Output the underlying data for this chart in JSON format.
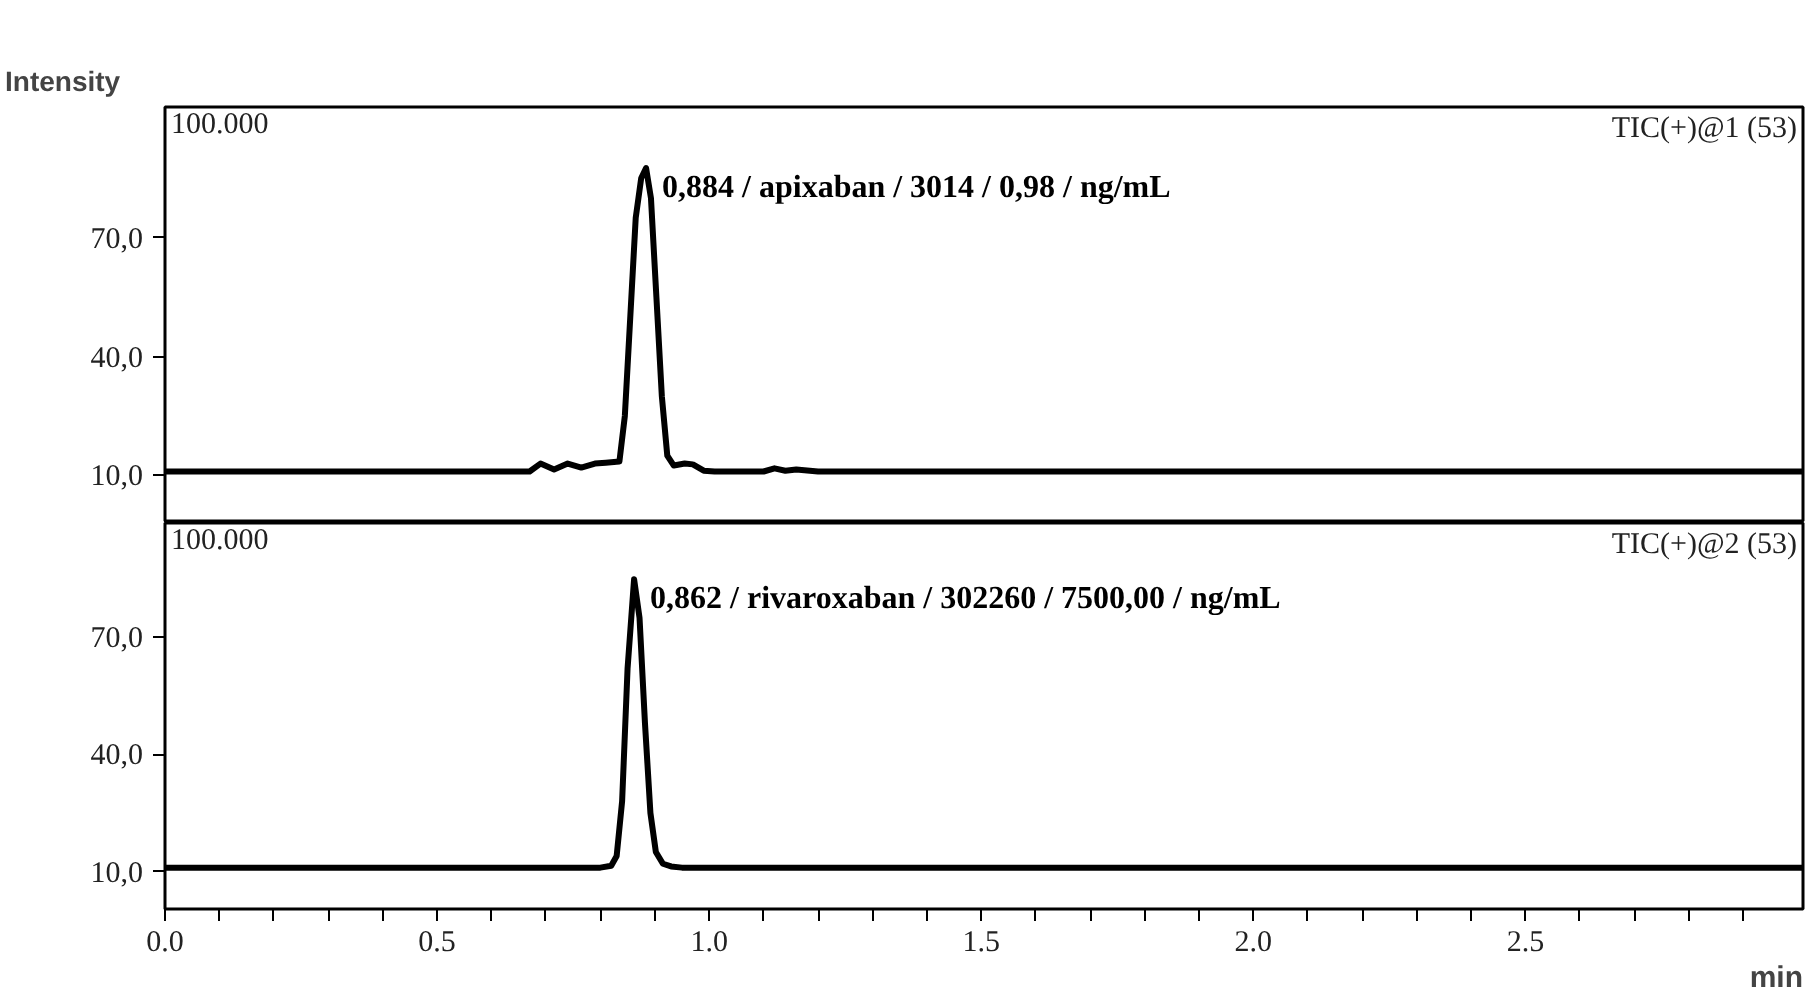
{
  "chart_data": [
    {
      "type": "line",
      "ylabel": "Intensity",
      "xlim": [
        0,
        3.01
      ],
      "ylim": [
        -2,
        103
      ],
      "yticks": [
        {
          "value": 10,
          "label": "10,0"
        },
        {
          "value": 40,
          "label": "40,0"
        },
        {
          "value": 70,
          "label": "70,0"
        }
      ],
      "tick_labels": "y",
      "grid": false,
      "series": [
        {
          "color": "#000000",
          "x": [
            0,
            0.5,
            0.67,
            0.69,
            0.715,
            0.74,
            0.765,
            0.79,
            0.81,
            0.835,
            0.845,
            0.855,
            0.865,
            0.875,
            0.884,
            0.893,
            0.903,
            0.913,
            0.923,
            0.935,
            0.955,
            0.97,
            0.99,
            1.01,
            1.1,
            1.12,
            1.14,
            1.16,
            1.2,
            1.5,
            2.0,
            2.5,
            3.01
          ],
          "values": [
            11,
            11,
            11,
            13,
            11.5,
            13,
            12,
            13,
            13.2,
            13.5,
            25,
            50,
            75,
            85,
            87.6,
            80,
            55,
            30,
            15,
            12.5,
            13,
            12.8,
            11.2,
            11,
            11,
            11.8,
            11.2,
            11.5,
            11,
            11,
            11,
            11,
            11
          ]
        }
      ],
      "annotations": [
        "100.000",
        "TIC(+)@1 (53)",
        {
          "text": "0,884 / apixaban / 3014 / 0,98 / ng/mL",
          "x": 0.884,
          "y": 87.6
        }
      ]
    },
    {
      "type": "line",
      "xlabel": "min",
      "xlim": [
        0,
        3.01
      ],
      "ylim": [
        0.4,
        99.3
      ],
      "xticks": [
        {
          "value": 0,
          "label": "0.0"
        },
        {
          "value": 0.1,
          "label": null
        },
        {
          "value": 0.2,
          "label": null
        },
        {
          "value": 0.3,
          "label": null
        },
        {
          "value": 0.4,
          "label": null
        },
        {
          "value": 0.5,
          "label": "0.5"
        },
        {
          "value": 0.6,
          "label": null
        },
        {
          "value": 0.7,
          "label": null
        },
        {
          "value": 0.8,
          "label": null
        },
        {
          "value": 0.9,
          "label": null
        },
        {
          "value": 1,
          "label": "1.0"
        },
        {
          "value": 1.1,
          "label": null
        },
        {
          "value": 1.2,
          "label": null
        },
        {
          "value": 1.3,
          "label": null
        },
        {
          "value": 1.4,
          "label": null
        },
        {
          "value": 1.5,
          "label": "1.5"
        },
        {
          "value": 1.6,
          "label": null
        },
        {
          "value": 1.7,
          "label": null
        },
        {
          "value": 1.8,
          "label": null
        },
        {
          "value": 1.9,
          "label": null
        },
        {
          "value": 2,
          "label": "2.0"
        },
        {
          "value": 2.1,
          "label": null
        },
        {
          "value": 2.2,
          "label": null
        },
        {
          "value": 2.3,
          "label": null
        },
        {
          "value": 2.4,
          "label": null
        },
        {
          "value": 2.5,
          "label": "2.5"
        },
        {
          "value": 2.6,
          "label": null
        },
        {
          "value": 2.7,
          "label": null
        },
        {
          "value": 2.8,
          "label": null
        },
        {
          "value": 2.9,
          "label": null
        }
      ],
      "yticks": [
        {
          "value": 10,
          "label": "10,0"
        },
        {
          "value": 40,
          "label": "40,0"
        },
        {
          "value": 70,
          "label": "70,0"
        }
      ],
      "grid": false,
      "series": [
        {
          "color": "#000000",
          "x": [
            0,
            0.5,
            0.8,
            0.82,
            0.83,
            0.84,
            0.85,
            0.862,
            0.872,
            0.882,
            0.892,
            0.902,
            0.915,
            0.93,
            0.95,
            1.0,
            1.5,
            2.0,
            2.5,
            3.01
          ],
          "values": [
            11,
            11,
            11,
            11.5,
            14,
            28,
            62,
            84.9,
            75,
            48,
            25,
            15,
            12,
            11.3,
            11,
            11,
            11,
            11,
            11,
            11
          ]
        }
      ],
      "annotations": [
        "100.000",
        "TIC(+)@2 (53)",
        {
          "text": "0,862 / rivaroxaban / 302260 / 7500,00 / ng/mL",
          "x": 0.862,
          "y": 84.9
        }
      ]
    }
  ]
}
